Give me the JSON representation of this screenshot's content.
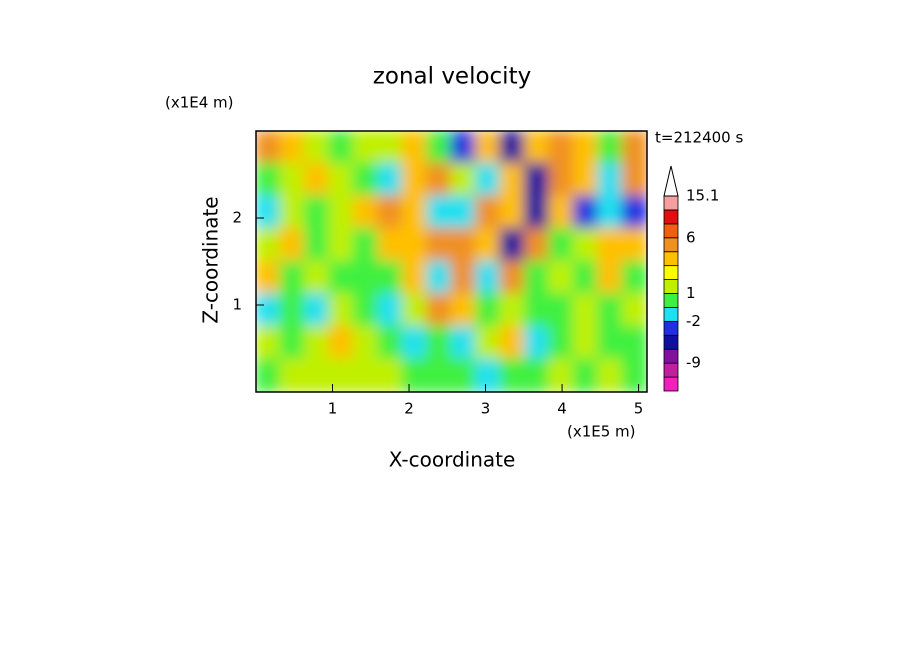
{
  "chart_data": {
    "type": "contour",
    "title": "zonal velocity",
    "x_label": "X-coordinate",
    "y_label": "Z-coordinate",
    "x_unit": "(x1E5 m)",
    "y_unit": "(x1E4 m)",
    "time_label": "t=212400 s",
    "xlim": [
      0,
      5.11
    ],
    "ylim": [
      0,
      3.0
    ],
    "xticks": [
      1,
      2,
      3,
      4,
      5
    ],
    "yticks": [
      1,
      2
    ],
    "z": [
      [
        4,
        2,
        1.2,
        0,
        1.2,
        1.2,
        2,
        0,
        -3,
        2,
        -5,
        3,
        5,
        2,
        0,
        4
      ],
      [
        0,
        1.2,
        2,
        1.2,
        0,
        -1.5,
        3,
        5,
        1.2,
        -1.5,
        3,
        -5,
        4,
        2,
        -1.5,
        4
      ],
      [
        -1.5,
        1.2,
        0,
        1.2,
        3,
        4,
        2,
        -1.5,
        -1.5,
        5,
        2,
        -5,
        3,
        -3,
        -1.5,
        -3
      ],
      [
        1.2,
        2,
        0,
        1.2,
        0,
        2,
        3,
        5,
        4,
        3,
        -5,
        5,
        0,
        1.2,
        3,
        2
      ],
      [
        2,
        0,
        1.2,
        0,
        0,
        0,
        3,
        -1.5,
        4,
        -1.5,
        5,
        0,
        1.2,
        0,
        2,
        0
      ],
      [
        -1.5,
        0,
        -1.5,
        1.2,
        0,
        -1.5,
        1.2,
        4,
        2,
        0,
        1.2,
        0,
        0,
        1.2,
        0,
        1.2
      ],
      [
        1.2,
        0,
        1.2,
        2,
        1.2,
        0,
        -1.5,
        0,
        -1.5,
        1.2,
        2,
        -1.5,
        0,
        1.2,
        0,
        0
      ],
      [
        0,
        1.2,
        1.2,
        1.2,
        1.2,
        1.2,
        0,
        0,
        0,
        -1.5,
        0,
        0,
        1.2,
        0,
        1.2,
        0
      ]
    ],
    "levels": [
      -15,
      -12,
      -9,
      -6,
      -4,
      -2,
      -1,
      1,
      1.5,
      2,
      4,
      6,
      9,
      12,
      15.1
    ],
    "colors": [
      "#f020c0",
      "#c020a0",
      "#8010a0",
      "#1010a0",
      "#2030e0",
      "#20e0f0",
      "#40f040",
      "#c0f000",
      "#ffff00",
      "#ffc000",
      "#f09020",
      "#f06010",
      "#e01010",
      "#f4a0a0"
    ],
    "colorbar_ticks": [
      15.1,
      6,
      1,
      -2,
      -9
    ]
  }
}
